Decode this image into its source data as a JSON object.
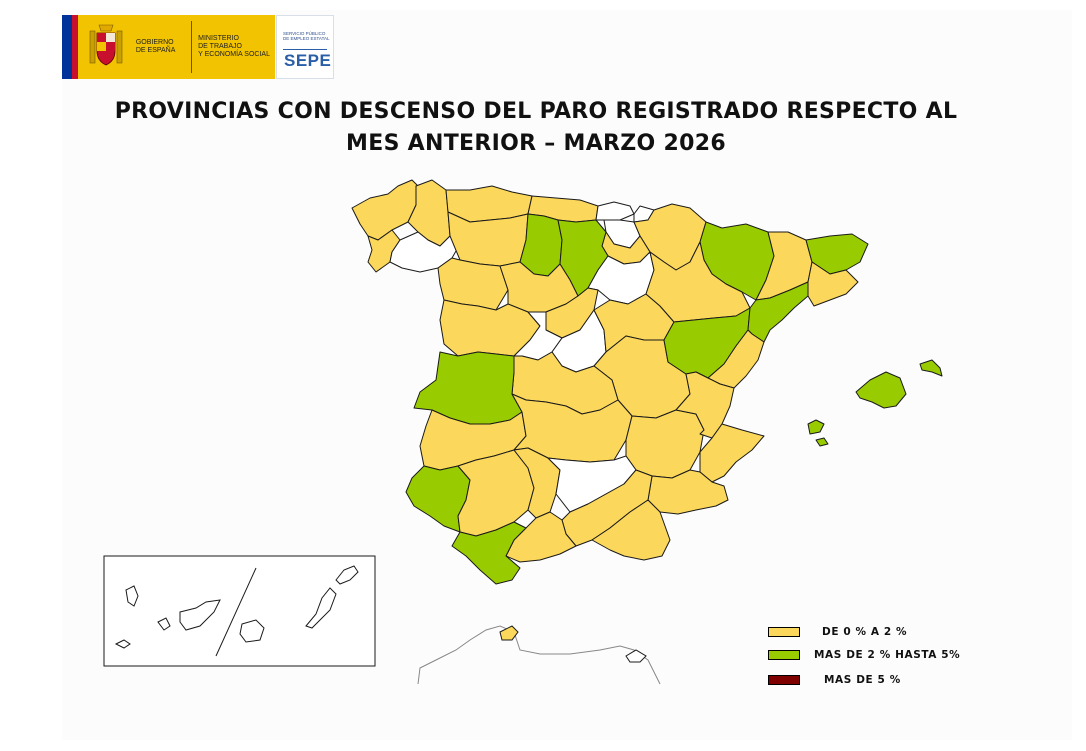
{
  "header": {
    "gov_line1": "GOBIERNO",
    "gov_line2": "DE ESPAÑA",
    "ministry_line1": "MINISTERIO",
    "ministry_line2": "DE TRABAJO",
    "ministry_line3": "Y ECONOMÍA SOCIAL",
    "sepe_small_line1": "SERVICIO PÚBLICO",
    "sepe_small_line2": "DE EMPLEO ESTATAL",
    "sepe_brand": "SEPE"
  },
  "title_line1": "PROVINCIAS CON DESCENSO DEL PARO REGISTRADO RESPECTO AL",
  "title_line2": "MES ANTERIOR – MARZO 2026",
  "colors": {
    "low": "#fbd75b",
    "mid": "#99cc00",
    "high": "#800000",
    "none": "#ffffff",
    "border": "#1a1a1a",
    "brand_yellow": "#f2c300",
    "brand_blue": "#2a5fa8"
  },
  "legend": [
    {
      "label": "DE 0 % A  2 %",
      "category": "low"
    },
    {
      "label": "MAS DE 2 % HASTA 5%",
      "category": "mid"
    },
    {
      "label": "MAS DE 5 %",
      "category": "high"
    }
  ]
}
